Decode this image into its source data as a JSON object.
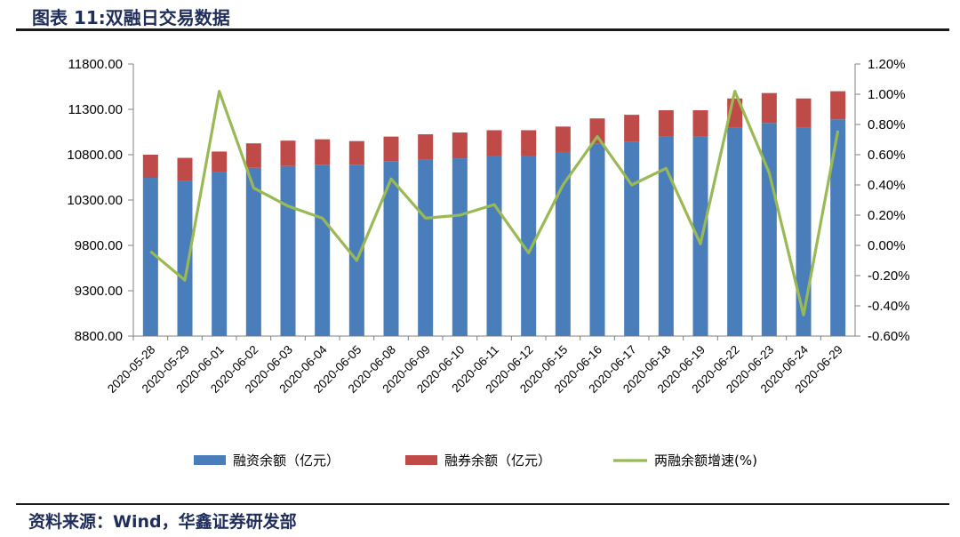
{
  "header": {
    "title": "图表 11:双融日交易数据"
  },
  "footer": {
    "source": "资料来源：Wind，华鑫证券研发部"
  },
  "colors": {
    "financing": "#4a7ebb",
    "securities_lending": "#be4b48",
    "growth": "#98b954"
  },
  "chart_data": {
    "type": "bar+line",
    "categories": [
      "2020-05-28",
      "2020-05-29",
      "2020-06-01",
      "2020-06-02",
      "2020-06-03",
      "2020-06-04",
      "2020-06-05",
      "2020-06-08",
      "2020-06-09",
      "2020-06-10",
      "2020-06-11",
      "2020-06-12",
      "2020-06-15",
      "2020-06-16",
      "2020-06-17",
      "2020-06-18",
      "2020-06-19",
      "2020-06-22",
      "2020-06-23",
      "2020-06-24",
      "2020-06-29"
    ],
    "series": [
      {
        "name": "融资余额（亿元）",
        "type": "bar",
        "axis": "left",
        "values": [
          10545,
          10515,
          10605,
          10655,
          10675,
          10690,
          10690,
          10730,
          10745,
          10760,
          10790,
          10790,
          10830,
          10920,
          10940,
          11000,
          11000,
          11100,
          11150,
          11100,
          11190
        ]
      },
      {
        "name": "融券余额（亿元）",
        "type": "bar",
        "stacked": true,
        "axis": "left",
        "values": [
          255,
          250,
          230,
          270,
          280,
          280,
          260,
          270,
          280,
          285,
          280,
          280,
          280,
          280,
          300,
          290,
          290,
          320,
          330,
          320,
          310
        ]
      },
      {
        "name": "两融余额增速(%)",
        "type": "line",
        "axis": "right",
        "values": [
          -0.04,
          -0.23,
          1.02,
          0.38,
          0.26,
          0.18,
          -0.1,
          0.44,
          0.18,
          0.2,
          0.27,
          -0.05,
          0.4,
          0.72,
          0.4,
          0.51,
          0.01,
          1.02,
          0.48,
          -0.46,
          0.76
        ]
      }
    ],
    "y_left": {
      "ylim": [
        8800,
        11800
      ],
      "ticks": [
        "8800.00",
        "9300.00",
        "9800.00",
        "10300.00",
        "10800.00",
        "11300.00",
        "11800.00"
      ]
    },
    "y_right": {
      "ylim": [
        -0.6,
        1.2
      ],
      "ticks": [
        "-0.60%",
        "-0.40%",
        "-0.20%",
        "0.00%",
        "0.20%",
        "0.40%",
        "0.60%",
        "0.80%",
        "1.00%",
        "1.20%"
      ]
    },
    "legend": {
      "position": "bottom"
    }
  }
}
